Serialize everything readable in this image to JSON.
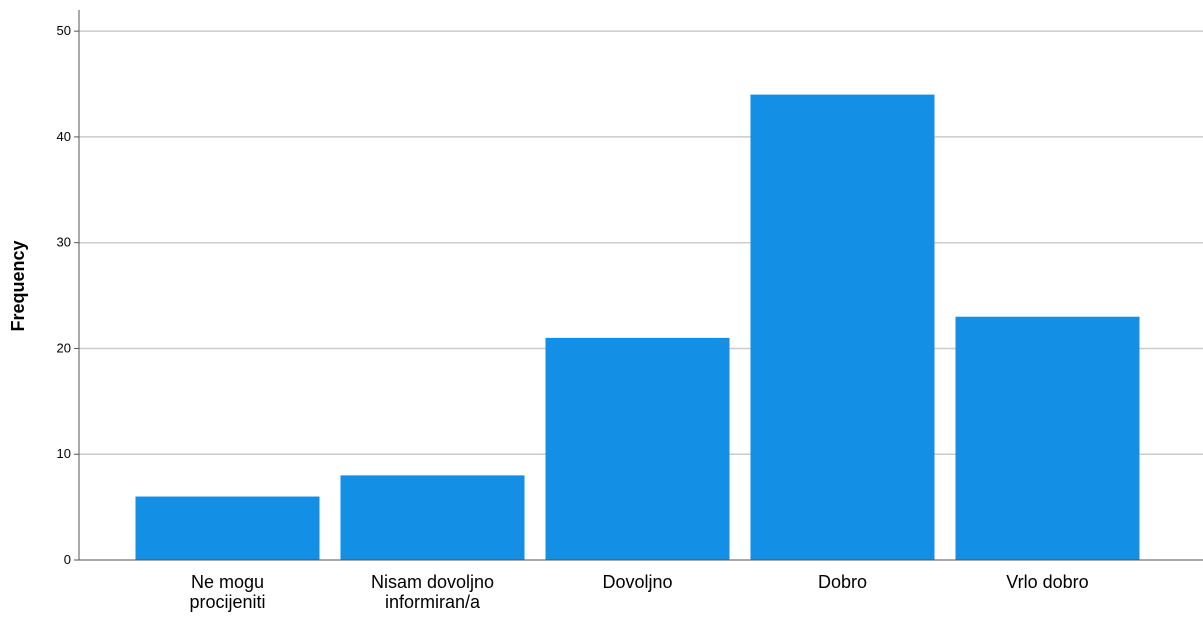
{
  "chart_data": {
    "type": "bar",
    "categories": [
      [
        "Ne mogu",
        "procijeniti"
      ],
      [
        "Nisam dovoljno",
        "informiran/a"
      ],
      [
        "Dovoljno"
      ],
      [
        "Dobro"
      ],
      [
        "Vrlo dobro"
      ]
    ],
    "values": [
      6,
      8,
      21,
      44,
      23
    ],
    "title": "",
    "xlabel": "",
    "ylabel": "Frequency",
    "ylim": [
      0,
      52
    ],
    "yticks": [
      0,
      10,
      20,
      30,
      40,
      50
    ],
    "grid": true,
    "bar_color": "#1390e6",
    "grid_color": "#cccccc",
    "axis_color": "#555555"
  }
}
